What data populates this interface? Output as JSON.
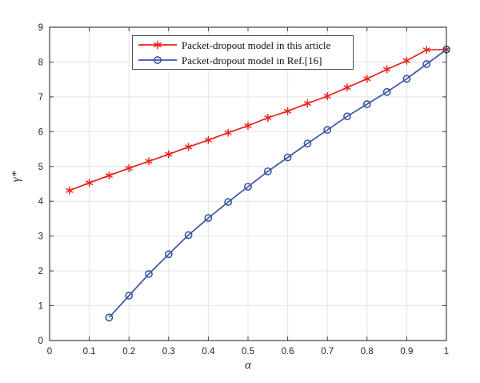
{
  "figure": {
    "background": "#ffffff"
  },
  "chart_data": {
    "type": "line",
    "title": "",
    "xlabel": "α",
    "ylabel": "γ*",
    "xlim": [
      0,
      1
    ],
    "ylim": [
      0,
      9
    ],
    "xticks": [
      0,
      0.1,
      0.2,
      0.3,
      0.4,
      0.5,
      0.6,
      0.7,
      0.8,
      0.9,
      1
    ],
    "xtick_labels": [
      "0",
      "0.1",
      "0.2",
      "0.3",
      "0.4",
      "0.5",
      "0.6",
      "0.7",
      "0.8",
      "0.9",
      "1"
    ],
    "yticks": [
      0,
      1,
      2,
      3,
      4,
      5,
      6,
      7,
      8,
      9
    ],
    "ytick_labels": [
      "0",
      "1",
      "2",
      "3",
      "4",
      "5",
      "6",
      "7",
      "8",
      "9"
    ],
    "grid": true,
    "grid_color": "#e4e4e4",
    "axis_color": "#3f3f3f",
    "tick_label_color": "#262626",
    "legend": {
      "position": "north-inside",
      "border_color": "#4d4d4d",
      "background": "#ffffff"
    },
    "series": [
      {
        "name": "Packet-dropout model in this article",
        "color": "#e8231d",
        "marker": "asterisk",
        "x": [
          0.05,
          0.1,
          0.15,
          0.2,
          0.25,
          0.3,
          0.35,
          0.4,
          0.45,
          0.5,
          0.55,
          0.6,
          0.65,
          0.7,
          0.75,
          0.8,
          0.85,
          0.9,
          0.95,
          1.0
        ],
        "y": [
          4.31,
          4.53,
          4.74,
          4.95,
          5.15,
          5.35,
          5.56,
          5.76,
          5.97,
          6.17,
          6.4,
          6.59,
          6.81,
          7.02,
          7.27,
          7.52,
          7.79,
          8.04,
          8.35,
          8.36
        ]
      },
      {
        "name": "Packet-dropout model in Ref.[16]",
        "color": "#3b55a6",
        "marker": "circle",
        "x": [
          0.15,
          0.2,
          0.25,
          0.3,
          0.35,
          0.4,
          0.45,
          0.5,
          0.55,
          0.6,
          0.65,
          0.7,
          0.75,
          0.8,
          0.85,
          0.9,
          0.95,
          1.0
        ],
        "y": [
          0.66,
          1.29,
          1.91,
          2.48,
          3.03,
          3.52,
          3.98,
          4.42,
          4.86,
          5.26,
          5.66,
          6.05,
          6.44,
          6.79,
          7.14,
          7.52,
          7.94,
          8.36
        ]
      }
    ]
  }
}
